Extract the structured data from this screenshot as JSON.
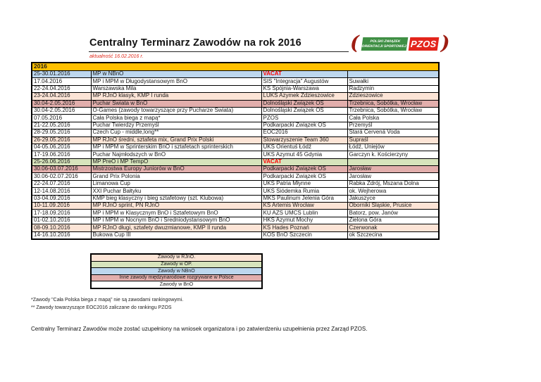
{
  "page": {
    "title": "Centralny Terminarz Zawodów na rok 2016",
    "updated_note": "aktualność 16.02.2016 r."
  },
  "logo": {
    "org_line1": "POLSKI ZWIĄZEK",
    "org_line2": "ORIENTACJI SPORTOWEJ",
    "abbr": "PZOS"
  },
  "colors": {
    "year": "#ffc000",
    "rjno": "#fce4d6",
    "op": "#d7e4bc",
    "nbno": "#bdd7ee",
    "intl": "#e2aeac",
    "bno": "#ffffff",
    "vacat_text": "#ff0000",
    "logo_green": "#3f8f44",
    "logo_red": "#e3251c"
  },
  "table": {
    "year_header": "2016",
    "columns": [
      "date",
      "event",
      "organizer",
      "location"
    ],
    "rows": [
      {
        "date": "25-30.01.2016",
        "event": "MP w NBnO",
        "organizer": "VACAT",
        "location": "",
        "type": "nbno",
        "vacat": true
      },
      {
        "date": "17.04.2016",
        "event": "MP i MPM w Długodystansowym BnO",
        "organizer": "SIS \"Integracja\" Augustów",
        "location": "Suwałki",
        "type": "bno",
        "vacat": false
      },
      {
        "date": "22-24.04.2016",
        "event": "Warszawska Mila",
        "organizer": "KS Spójnia-Warszawa",
        "location": "Radzymin",
        "type": "bno",
        "vacat": false
      },
      {
        "date": "23-24.04.2016",
        "event": "MP RJnO klasyk, KMP I runda",
        "organizer": "LUKS Azymek Zdzieszowice",
        "location": "Zdzieszowice",
        "type": "rjno",
        "vacat": false
      },
      {
        "date": "30.04-2.05.2016",
        "event": "Puchar Świata w BnO",
        "organizer": "Dolnośląski Związek OS",
        "location": "Trzebnica, Sobótka, Wrocław",
        "type": "intl",
        "vacat": false
      },
      {
        "date": "30.04-2.05.2016",
        "event": "O-Games (zawody towarzyszące przy Pucharze Świata)",
        "organizer": "Dolnośląski Związek OS",
        "location": "Trzebnica, Sobótka, Wrocław",
        "type": "bno",
        "vacat": false
      },
      {
        "date": "07.05.2016",
        "event": "Cała Polska biega z mapą*",
        "organizer": "PZOS",
        "location": "Cała Polska",
        "type": "bno",
        "vacat": false
      },
      {
        "date": "21-22.05.2016",
        "event": "Puchar Twierdzy Przemyśl",
        "organizer": "Podkarpacki Związek OS",
        "location": "Przemyśl",
        "type": "bno",
        "vacat": false
      },
      {
        "date": "28-29.05.2016",
        "event": "Czech Cup - middle,long**",
        "organizer": "EOC2016",
        "location": "Stará Červená Voda",
        "type": "bno",
        "vacat": false
      },
      {
        "date": "26-29.05.2016",
        "event": "MP RJnO średni, sztafeta mix, Grand Prix Polski",
        "organizer": "Stowarzyszenie Team 360",
        "location": "Supraśl",
        "type": "rjno",
        "vacat": false
      },
      {
        "date": "04-05.06.2016",
        "event": "MP i MPM w Sprinterskim BnO i sztafetach sprinterskich",
        "organizer": "UKS Orientuś Łódź",
        "location": "Łódź, Uniejów",
        "type": "bno",
        "vacat": false
      },
      {
        "date": "17-19.06.2016",
        "event": "Puchar Najmłodszych w BnO",
        "organizer": "UKS Azymut 45 Gdynia",
        "location": "Garczyn k. Kościerzyny",
        "type": "bno",
        "vacat": false
      },
      {
        "date": "25-26.06.2016",
        "event": "MP PreO i MP TempO",
        "organizer": "VACAT",
        "location": "",
        "type": "op",
        "vacat": true
      },
      {
        "date": "30.06-03.07.2016",
        "event": "Mistrzostwa Europy Juniorów w BnO",
        "organizer": "Podkarpacki Związek OS",
        "location": "Jarosław",
        "type": "intl",
        "vacat": false
      },
      {
        "date": "30.06-02.07.2016",
        "event": "Grand Prix Polonia",
        "organizer": "Podkarpacki Związek OS",
        "location": "Jarosław",
        "type": "bno",
        "vacat": false
      },
      {
        "date": "22-24.07.2016",
        "event": "Limanowa Cup",
        "organizer": "UKS Patria Młynne",
        "location": "Rabka Zdrój, Mszana Dolna",
        "type": "bno",
        "vacat": false
      },
      {
        "date": "12-14.08.2016",
        "event": "XXI Puchar Bałtyku",
        "organizer": "UKS Siódemka Rumia",
        "location": "ok. Wejherowa",
        "type": "bno",
        "vacat": false
      },
      {
        "date": "03-04.09.2016",
        "event": "KMP bieg klasyczny i bieg sztafetowy (szt. Klubowa)",
        "organizer": "MKS Paulinum Jelenia Góra",
        "location": "Jakuszyce",
        "type": "bno",
        "vacat": false
      },
      {
        "date": "10-11.09.2016",
        "event": "MP RJnO sprint, PN RJnO",
        "organizer": "KS Artemis Wrocław",
        "location": "Oborniki Śląskie, Prusice",
        "type": "rjno",
        "vacat": false
      },
      {
        "date": "17-18.09.2016",
        "event": "MP i MPM w Klasycznym BnO i Sztafetowym BnO",
        "organizer": "KU AZS UMCS Lublin",
        "location": "Batorz, pow. Janów",
        "type": "bno",
        "vacat": false
      },
      {
        "date": "01-02.10.2016",
        "event": "MP i MPM w Nocnym BnO i Średniodystansowym BnO",
        "organizer": "HKS Azymut Mochy",
        "location": "Zielona Góra",
        "type": "bno",
        "vacat": false
      },
      {
        "date": "08-09.10.2016",
        "event": "MP RJnO długi, sztafety dwuzmianowe, KMP II runda",
        "organizer": "KS Hades Poznań",
        "location": "Czerwonak",
        "type": "rjno",
        "vacat": false
      },
      {
        "date": "14-16.10.2016",
        "event": "Bukowa Cup III",
        "organizer": "KOS BnO Szczecin",
        "location": "ok Szczecina",
        "type": "bno",
        "vacat": false
      }
    ]
  },
  "legend": {
    "items": [
      {
        "label": "Zawody w RJnO.",
        "type": "rjno"
      },
      {
        "label": "Zawody w OP.",
        "type": "op"
      },
      {
        "label": "Zawody w NBnO",
        "type": "nbno"
      },
      {
        "label": "Inne zawody międzynarodowe rozgrywane w Polsce",
        "type": "intl"
      },
      {
        "label": "Zawody w BnO",
        "type": "bno"
      }
    ]
  },
  "footnotes": [
    "*Zawody \"Cała Polska biega z mapą\" nie są zawodami rankingowymi.",
    "** Zawody towarzyszące EOC2016 zaliczane do rankingu PZOS"
  ],
  "footer_note": "Centralny Terminarz Zawodów może zostać uzupełniony na wniosek organizatora i po zatwierdzeniu uzupełnienia przez Zarząd PZOS."
}
